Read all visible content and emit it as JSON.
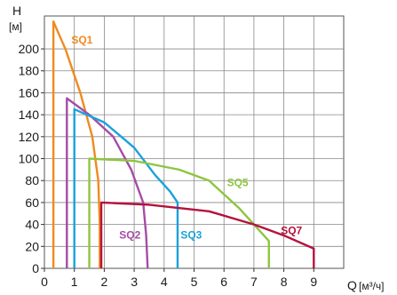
{
  "chart_data": {
    "type": "line",
    "y_axis": {
      "symbol": "H",
      "unit": "[м]",
      "min": 0,
      "max": 230,
      "ticks": [
        0,
        20,
        40,
        60,
        80,
        100,
        120,
        140,
        160,
        180,
        200
      ]
    },
    "x_axis": {
      "symbol": "Q",
      "unit": "[м³/ч]",
      "min": 0,
      "max": 10,
      "ticks": [
        0,
        1,
        2,
        3,
        4,
        5,
        6,
        7,
        8,
        9
      ]
    },
    "grid": true,
    "series": [
      {
        "name": "SQ1",
        "color": "#f08a1e",
        "points": [
          [
            0.3,
            0
          ],
          [
            0.3,
            225
          ],
          [
            0.7,
            200
          ],
          [
            1.2,
            160
          ],
          [
            1.6,
            120
          ],
          [
            1.8,
            80
          ],
          [
            1.85,
            40
          ],
          [
            1.85,
            0
          ]
        ],
        "label_at": [
          0.9,
          205
        ]
      },
      {
        "name": "SQ2",
        "color": "#a64ca6",
        "points": [
          [
            0.75,
            0
          ],
          [
            0.75,
            155
          ],
          [
            1.5,
            140
          ],
          [
            2.3,
            120
          ],
          [
            2.9,
            90
          ],
          [
            3.3,
            60
          ],
          [
            3.4,
            30
          ],
          [
            3.45,
            0
          ]
        ],
        "label_at": [
          2.5,
          27
        ]
      },
      {
        "name": "SQ3",
        "color": "#19a2dc",
        "points": [
          [
            1.0,
            0
          ],
          [
            1.0,
            145
          ],
          [
            2.0,
            133
          ],
          [
            3.0,
            110
          ],
          [
            3.7,
            85
          ],
          [
            4.2,
            70
          ],
          [
            4.45,
            60
          ],
          [
            4.45,
            0
          ]
        ],
        "label_at": [
          4.55,
          27
        ]
      },
      {
        "name": "SQ5",
        "color": "#8dc63f",
        "points": [
          [
            1.5,
            0
          ],
          [
            1.5,
            100
          ],
          [
            3.0,
            98
          ],
          [
            4.5,
            90
          ],
          [
            5.5,
            80
          ],
          [
            6.5,
            55
          ],
          [
            7.5,
            25
          ],
          [
            7.5,
            0
          ]
        ],
        "label_at": [
          6.1,
          75
        ]
      },
      {
        "name": "SQ7",
        "color": "#b5123d",
        "points": [
          [
            1.9,
            0
          ],
          [
            1.9,
            60
          ],
          [
            3.5,
            58
          ],
          [
            5.5,
            52
          ],
          [
            7.0,
            40
          ],
          [
            8.0,
            30
          ],
          [
            9.0,
            18
          ],
          [
            9.0,
            0
          ]
        ],
        "label_at": [
          7.9,
          31
        ]
      }
    ]
  }
}
